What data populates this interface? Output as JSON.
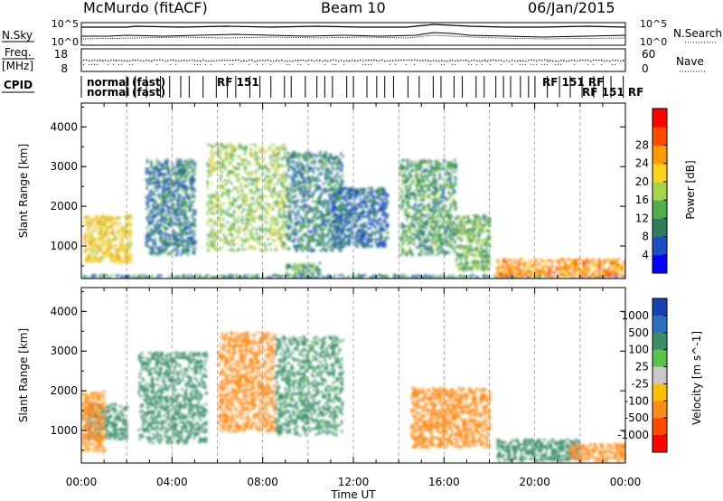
{
  "header": {
    "station": "McMurdo (fitACF)",
    "beam": "Beam 10",
    "date": "06/Jan/2015"
  },
  "top_panels": {
    "nsky": {
      "left_label": "N.Sky",
      "right_label": "N.Search",
      "y_ticks": [
        "10^5",
        "10^0"
      ],
      "right_ticks": [
        "10^5",
        "10^0"
      ]
    },
    "freq": {
      "left_label_1": "Freq.",
      "left_label_2": "[MHz]",
      "right_label": "Nave",
      "y_ticks": [
        "18",
        "8"
      ],
      "right_ticks": [
        "60",
        "0"
      ]
    },
    "cpid": {
      "label": "CPID",
      "mode_labels": [
        "normal",
        "normal",
        "(fast)",
        "(fast)",
        "RF 151",
        "RF 151 RF",
        "RF 151 RF"
      ]
    }
  },
  "chart_data": [
    {
      "type": "heatmap",
      "name": "power-panel",
      "ylabel": "Slant Range [km]",
      "xlabel": "",
      "x_ticks": [
        "00:00",
        "04:00",
        "08:00",
        "12:00",
        "16:00",
        "20:00",
        "00:00"
      ],
      "x_range_hours": [
        0,
        24
      ],
      "y_ticks": [
        1000,
        2000,
        3000,
        4000
      ],
      "y_range_km": [
        180,
        4600
      ],
      "colorbar": {
        "label": "Power [dB]",
        "ticks": [
          "4",
          "8",
          "12",
          "16",
          "20",
          "24",
          "28"
        ],
        "colors": [
          "#0000ff",
          "#1b4fbf",
          "#2f7d5a",
          "#4fae4f",
          "#a8d44a",
          "#ffd21a",
          "#ff9900",
          "#ff4d00",
          "#ff0000"
        ]
      },
      "echo_regions": [
        {
          "t_start": 0.1,
          "t_end": 2.2,
          "r_min": 600,
          "r_max": 1800,
          "value": 22
        },
        {
          "t_start": 0.0,
          "t_end": 24.0,
          "r_min": 200,
          "r_max": 300,
          "value": 10
        },
        {
          "t_start": 2.8,
          "t_end": 5.0,
          "r_min": 800,
          "r_max": 3200,
          "value": 9
        },
        {
          "t_start": 5.5,
          "t_end": 9.0,
          "r_min": 900,
          "r_max": 3600,
          "value": 16
        },
        {
          "t_start": 9.0,
          "t_end": 11.5,
          "r_min": 900,
          "r_max": 3400,
          "value": 10
        },
        {
          "t_start": 9.0,
          "t_end": 10.5,
          "r_min": 300,
          "r_max": 600,
          "value": 12
        },
        {
          "t_start": 11.0,
          "t_end": 13.5,
          "r_min": 1000,
          "r_max": 2500,
          "value": 8
        },
        {
          "t_start": 14.0,
          "t_end": 16.5,
          "r_min": 800,
          "r_max": 3200,
          "value": 12
        },
        {
          "t_start": 16.5,
          "t_end": 18.0,
          "r_min": 400,
          "r_max": 1800,
          "value": 14
        },
        {
          "t_start": 18.3,
          "t_end": 24.0,
          "r_min": 250,
          "r_max": 700,
          "value": 27
        }
      ]
    },
    {
      "type": "heatmap",
      "name": "velocity-panel",
      "ylabel": "Slant Range [km]",
      "xlabel": "Time UT",
      "x_ticks": [
        "00:00",
        "04:00",
        "08:00",
        "12:00",
        "16:00",
        "20:00",
        "00:00"
      ],
      "x_range_hours": [
        0,
        24
      ],
      "y_ticks": [
        1000,
        2000,
        3000,
        4000
      ],
      "y_range_km": [
        180,
        4600
      ],
      "colorbar": {
        "label": "Velocity [m s^-1]",
        "ticks": [
          "1000",
          "500",
          "100",
          "25",
          "-25",
          "-100",
          "-500",
          "-1000"
        ],
        "colors": [
          "#1a3fb5",
          "#2d6fbf",
          "#3a8f6a",
          "#5cc04a",
          "#c8c8c8",
          "#ffc000",
          "#ff8c1a",
          "#ff4d00",
          "#ff0000"
        ]
      },
      "echo_regions": [
        {
          "t_start": 0.2,
          "t_end": 2.0,
          "r_min": 800,
          "r_max": 1700,
          "value": 200
        },
        {
          "t_start": 0.0,
          "t_end": 1.0,
          "r_min": 500,
          "r_max": 2000,
          "value": -150
        },
        {
          "t_start": 2.5,
          "t_end": 5.5,
          "r_min": 700,
          "r_max": 3000,
          "value": 200
        },
        {
          "t_start": 6.0,
          "t_end": 8.5,
          "r_min": 1000,
          "r_max": 3500,
          "value": -200
        },
        {
          "t_start": 8.5,
          "t_end": 11.5,
          "r_min": 900,
          "r_max": 3400,
          "value": 150
        },
        {
          "t_start": 14.5,
          "t_end": 18.0,
          "r_min": 600,
          "r_max": 2100,
          "value": -250
        },
        {
          "t_start": 18.3,
          "t_end": 22.0,
          "r_min": 250,
          "r_max": 800,
          "value": 300
        },
        {
          "t_start": 21.5,
          "t_end": 24.0,
          "r_min": 250,
          "r_max": 700,
          "value": -200
        }
      ]
    }
  ]
}
